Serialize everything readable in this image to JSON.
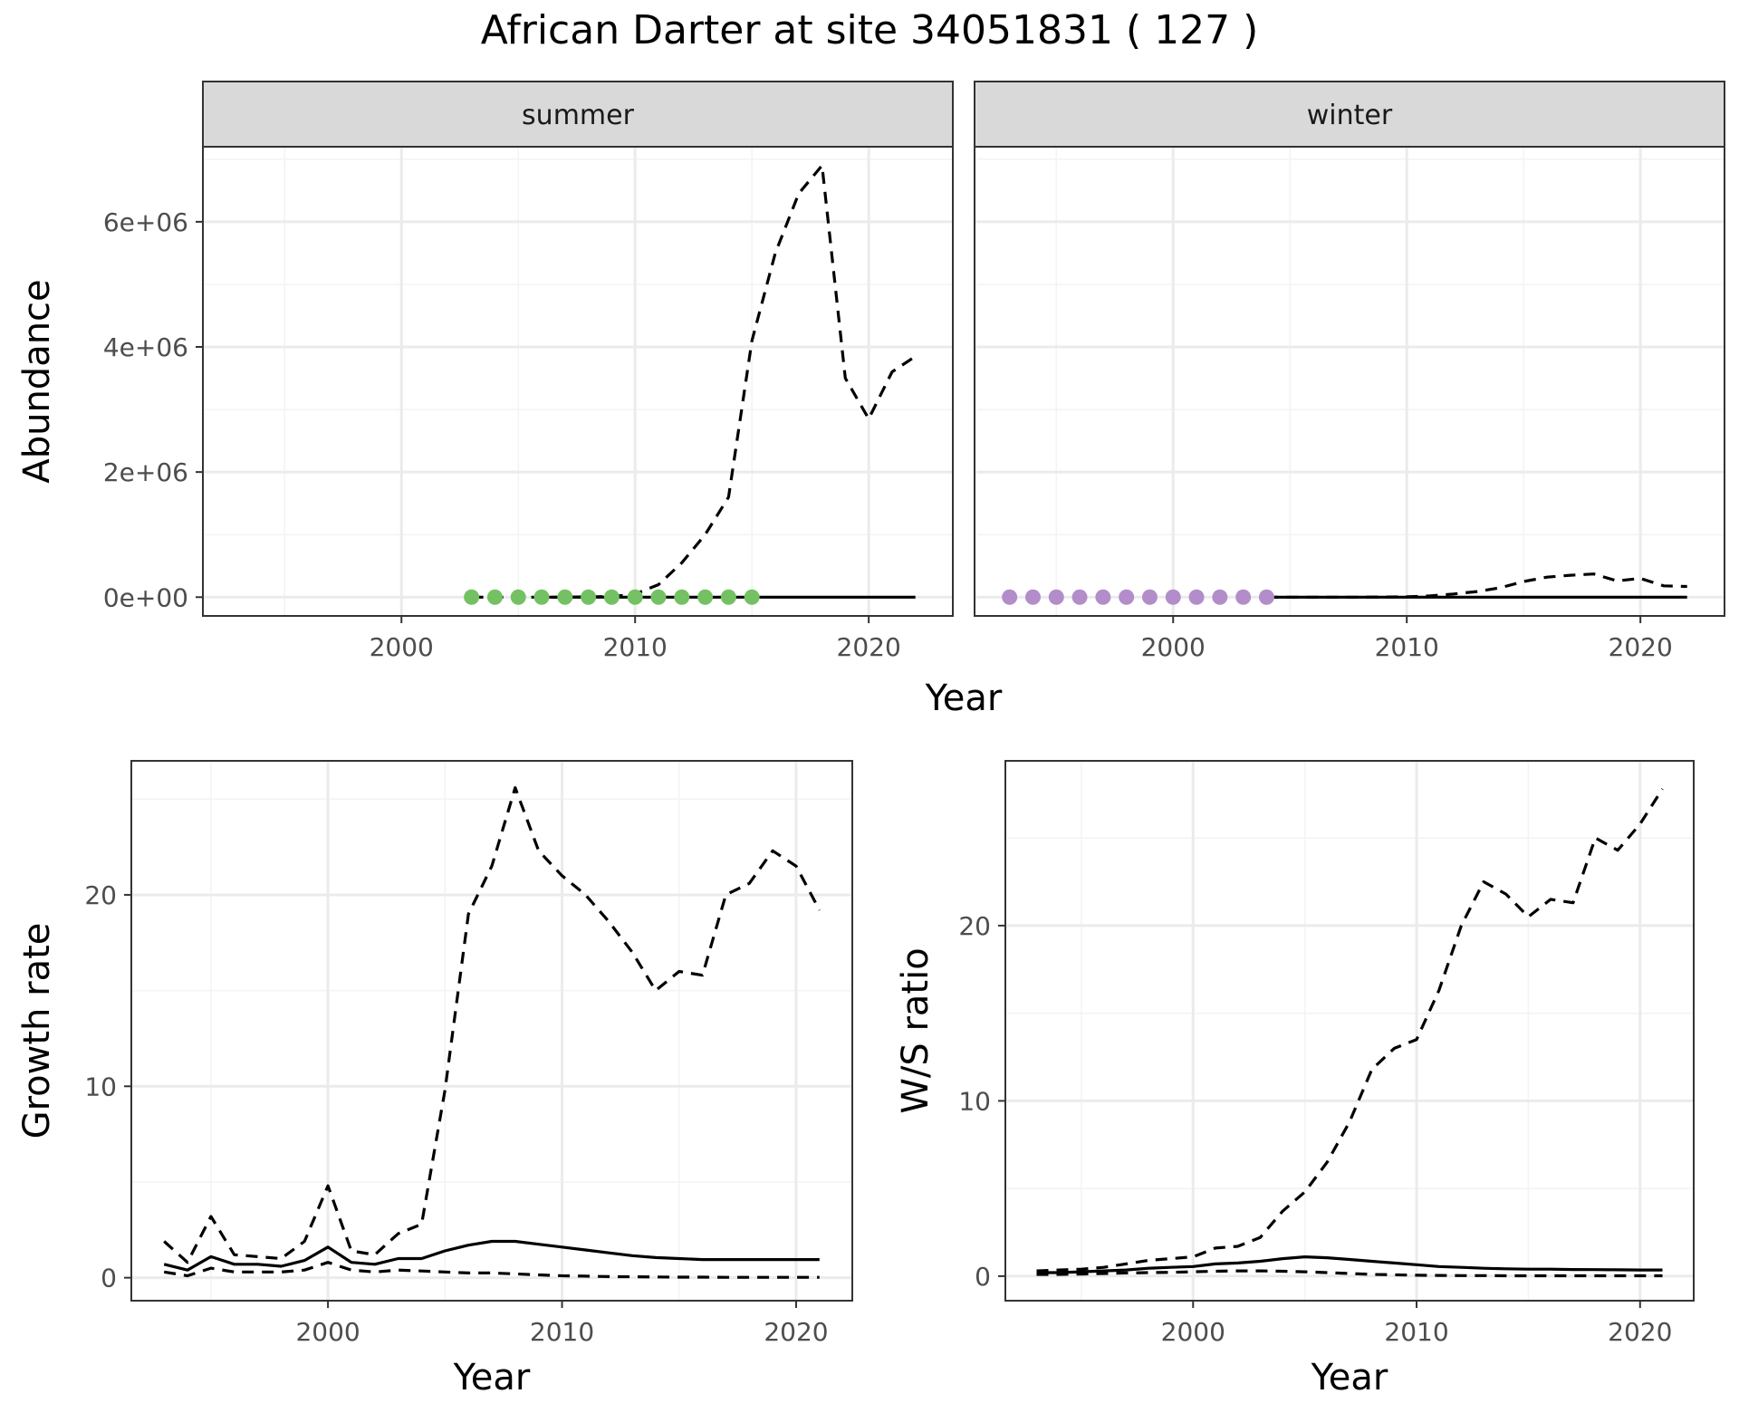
{
  "title": "African Darter at site 34051831 ( 127 )",
  "chart_data": [
    {
      "type": "line",
      "id": "abundance-summer",
      "facet": "summer",
      "xlabel": "Year",
      "ylabel": "Abundance",
      "xlim": [
        1991.5,
        2023.6
      ],
      "ylim": [
        -300000,
        7200000
      ],
      "xticks": [
        2000,
        2010,
        2020
      ],
      "xtick_labels": [
        "2000",
        "2010",
        "2020"
      ],
      "yticks": [
        0,
        2000000,
        4000000,
        6000000
      ],
      "ytick_labels": [
        "0e+00",
        "2e+06",
        "4e+06",
        "6e+06"
      ],
      "series": [
        {
          "name": "upper",
          "style": "dashed",
          "x": [
            2003,
            2004,
            2005,
            2006,
            2007,
            2008,
            2009,
            2010,
            2011,
            2012,
            2013,
            2014,
            2015,
            2016,
            2017,
            2018,
            2019,
            2020,
            2021,
            2022
          ],
          "values": [
            0,
            0,
            0,
            0,
            0,
            5000,
            10000,
            50000,
            200000,
            550000,
            1000000,
            1600000,
            4100000,
            5500000,
            6450000,
            6900000,
            3500000,
            2850000,
            3600000,
            3850000
          ]
        },
        {
          "name": "median",
          "style": "solid",
          "x": [
            2006,
            2022
          ],
          "values": [
            0,
            0
          ]
        }
      ],
      "points": {
        "color": "#74c163",
        "x": [
          2003,
          2004,
          2005,
          2006,
          2007,
          2008,
          2009,
          2010,
          2011,
          2012,
          2013,
          2014,
          2015
        ],
        "values": [
          0,
          0,
          0,
          0,
          0,
          0,
          0,
          0,
          0,
          0,
          0,
          0,
          0
        ]
      }
    },
    {
      "type": "line",
      "id": "abundance-winter",
      "facet": "winter",
      "xlabel": "Year",
      "ylabel": "Abundance",
      "xlim": [
        1991.5,
        2023.6
      ],
      "ylim": [
        -300000,
        7200000
      ],
      "xticks": [
        2000,
        2010,
        2020
      ],
      "xtick_labels": [
        "2000",
        "2010",
        "2020"
      ],
      "series": [
        {
          "name": "upper",
          "style": "dashed",
          "x": [
            2004,
            2006,
            2008,
            2010,
            2011,
            2012,
            2013,
            2014,
            2015,
            2016,
            2017,
            2018,
            2019,
            2020,
            2021,
            2022
          ],
          "values": [
            0,
            0,
            0,
            5000,
            20000,
            50000,
            90000,
            150000,
            250000,
            320000,
            350000,
            370000,
            260000,
            300000,
            180000,
            170000
          ]
        },
        {
          "name": "median",
          "style": "solid",
          "x": [
            2004,
            2022
          ],
          "values": [
            0,
            0
          ]
        }
      ],
      "points": {
        "color": "#b38dc9",
        "x": [
          1993,
          1994,
          1995,
          1996,
          1997,
          1998,
          1999,
          2000,
          2001,
          2002,
          2003,
          2004
        ],
        "values": [
          0,
          0,
          0,
          0,
          0,
          0,
          0,
          0,
          0,
          0,
          0,
          0
        ]
      }
    },
    {
      "type": "line",
      "id": "growth-rate",
      "xlabel": "Year",
      "ylabel": "Growth rate",
      "xlim": [
        1991.6,
        2022.4
      ],
      "ylim": [
        -1.2,
        27.0
      ],
      "xticks": [
        2000,
        2010,
        2020
      ],
      "xtick_labels": [
        "2000",
        "2010",
        "2020"
      ],
      "yticks": [
        0,
        10,
        20
      ],
      "ytick_labels": [
        "0",
        "10",
        "20"
      ],
      "series": [
        {
          "name": "upper",
          "style": "dashed",
          "x": [
            1993,
            1994,
            1995,
            1996,
            1997,
            1998,
            1999,
            2000,
            2001,
            2002,
            2003,
            2004,
            2005,
            2006,
            2007,
            2008,
            2009,
            2010,
            2011,
            2012,
            2013,
            2014,
            2015,
            2016,
            2017,
            2018,
            2019,
            2020,
            2021
          ],
          "values": [
            1.9,
            0.8,
            3.2,
            1.2,
            1.1,
            1.0,
            1.9,
            4.8,
            1.4,
            1.2,
            2.3,
            2.8,
            9.8,
            19.0,
            21.5,
            25.6,
            22.3,
            21.0,
            20.0,
            18.6,
            17.0,
            15.0,
            16.0,
            15.8,
            20.0,
            20.6,
            22.3,
            21.5,
            19.2
          ]
        },
        {
          "name": "median",
          "style": "solid",
          "x": [
            1993,
            1994,
            1995,
            1996,
            1997,
            1998,
            1999,
            2000,
            2001,
            2002,
            2003,
            2004,
            2005,
            2006,
            2007,
            2008,
            2009,
            2010,
            2011,
            2012,
            2013,
            2014,
            2015,
            2016,
            2017,
            2018,
            2019,
            2020,
            2021
          ],
          "values": [
            0.7,
            0.4,
            1.1,
            0.7,
            0.7,
            0.6,
            0.9,
            1.6,
            0.8,
            0.7,
            1.0,
            1.0,
            1.4,
            1.7,
            1.9,
            1.9,
            1.75,
            1.6,
            1.45,
            1.3,
            1.15,
            1.05,
            1.0,
            0.95,
            0.95,
            0.95,
            0.95,
            0.95,
            0.95
          ]
        },
        {
          "name": "lower",
          "style": "dashed",
          "x": [
            1993,
            1994,
            1995,
            1996,
            1997,
            1998,
            1999,
            2000,
            2001,
            2002,
            2003,
            2004,
            2005,
            2006,
            2007,
            2008,
            2009,
            2010,
            2011,
            2012,
            2013,
            2014,
            2015,
            2016,
            2017,
            2018,
            2019,
            2020,
            2021
          ],
          "values": [
            0.3,
            0.1,
            0.5,
            0.3,
            0.3,
            0.3,
            0.4,
            0.8,
            0.4,
            0.3,
            0.4,
            0.35,
            0.3,
            0.25,
            0.25,
            0.2,
            0.15,
            0.1,
            0.08,
            0.06,
            0.05,
            0.04,
            0.03,
            0.03,
            0.02,
            0.02,
            0.02,
            0.02,
            0.02
          ]
        }
      ]
    },
    {
      "type": "line",
      "id": "ws-ratio",
      "xlabel": "Year",
      "ylabel": "W/S ratio",
      "xlim": [
        1991.6,
        2022.4
      ],
      "ylim": [
        -1.4,
        29.4
      ],
      "xticks": [
        2000,
        2010,
        2020
      ],
      "xtick_labels": [
        "2000",
        "2010",
        "2020"
      ],
      "yticks": [
        0,
        10,
        20
      ],
      "ytick_labels": [
        "0",
        "10",
        "20"
      ],
      "series": [
        {
          "name": "upper",
          "style": "dashed",
          "x": [
            1993,
            1994,
            1995,
            1996,
            1997,
            1998,
            1999,
            2000,
            2001,
            2002,
            2003,
            2004,
            2005,
            2006,
            2007,
            2008,
            2009,
            2010,
            2011,
            2012,
            2013,
            2014,
            2015,
            2016,
            2017,
            2018,
            2019,
            2020,
            2021
          ],
          "values": [
            0.3,
            0.35,
            0.4,
            0.5,
            0.7,
            0.9,
            1.0,
            1.1,
            1.6,
            1.7,
            2.2,
            3.7,
            4.8,
            6.5,
            8.8,
            11.8,
            13.0,
            13.5,
            16.3,
            20.0,
            22.5,
            21.8,
            20.5,
            21.5,
            21.3,
            25.0,
            24.3,
            25.8,
            27.8
          ]
        },
        {
          "name": "median",
          "style": "solid",
          "x": [
            1993,
            1994,
            1995,
            1996,
            1997,
            1998,
            1999,
            2000,
            2001,
            2002,
            2003,
            2004,
            2005,
            2006,
            2007,
            2008,
            2009,
            2010,
            2011,
            2012,
            2013,
            2014,
            2015,
            2016,
            2017,
            2018,
            2019,
            2020,
            2021
          ],
          "values": [
            0.2,
            0.2,
            0.25,
            0.3,
            0.35,
            0.45,
            0.5,
            0.55,
            0.7,
            0.75,
            0.85,
            1.0,
            1.1,
            1.05,
            0.95,
            0.85,
            0.75,
            0.65,
            0.55,
            0.5,
            0.45,
            0.42,
            0.4,
            0.4,
            0.38,
            0.37,
            0.36,
            0.35,
            0.35
          ]
        },
        {
          "name": "lower",
          "style": "dashed",
          "x": [
            1993,
            1994,
            1995,
            1996,
            1997,
            1998,
            1999,
            2000,
            2001,
            2002,
            2003,
            2004,
            2005,
            2006,
            2007,
            2008,
            2009,
            2010,
            2011,
            2012,
            2013,
            2014,
            2015,
            2016,
            2017,
            2018,
            2019,
            2020,
            2021
          ],
          "values": [
            0.1,
            0.1,
            0.12,
            0.15,
            0.18,
            0.2,
            0.22,
            0.25,
            0.28,
            0.3,
            0.3,
            0.28,
            0.25,
            0.2,
            0.15,
            0.1,
            0.08,
            0.05,
            0.04,
            0.03,
            0.03,
            0.02,
            0.02,
            0.02,
            0.02,
            0.02,
            0.02,
            0.02,
            0.02
          ]
        }
      ]
    }
  ]
}
